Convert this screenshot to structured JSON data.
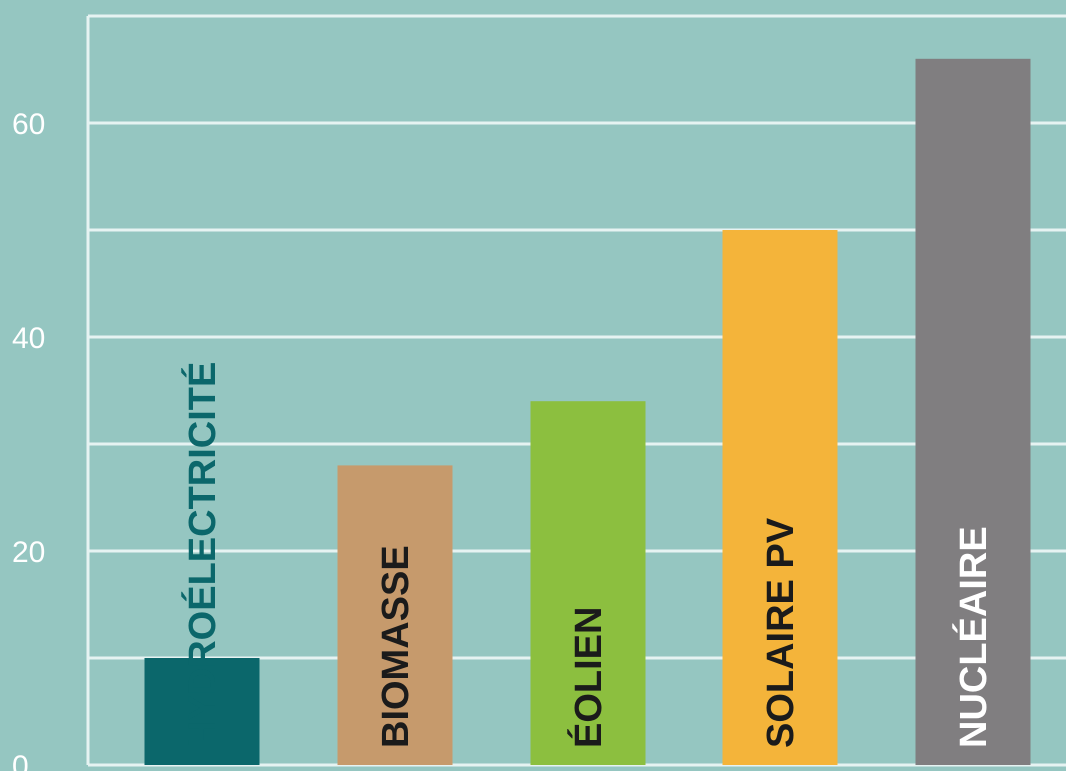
{
  "chart_data": {
    "type": "bar",
    "categories": [
      "HYDROÉLECTRICITÉ",
      "BIOMASSE",
      "ÉOLIEN",
      "SOLAIRE PV",
      "NUCLÉAIRE"
    ],
    "values": [
      10,
      28,
      34,
      50,
      66
    ],
    "colors": [
      "#0b676b",
      "#c69a6c",
      "#8cbf3f",
      "#f4b43a",
      "#807e80"
    ],
    "label_colors": [
      "#0b676b",
      "#1b1b1b",
      "#1b1b1b",
      "#1b1b1b",
      "#ffffff"
    ],
    "ylim": [
      0,
      70
    ],
    "yticks": [
      0,
      20,
      40,
      60
    ],
    "ytick_labels": [
      "0",
      "20",
      "40",
      "60"
    ],
    "grid": true,
    "title": "",
    "xlabel": "",
    "ylabel": "",
    "background": "#95c6c1",
    "grid_color": "#e6f3f2"
  }
}
